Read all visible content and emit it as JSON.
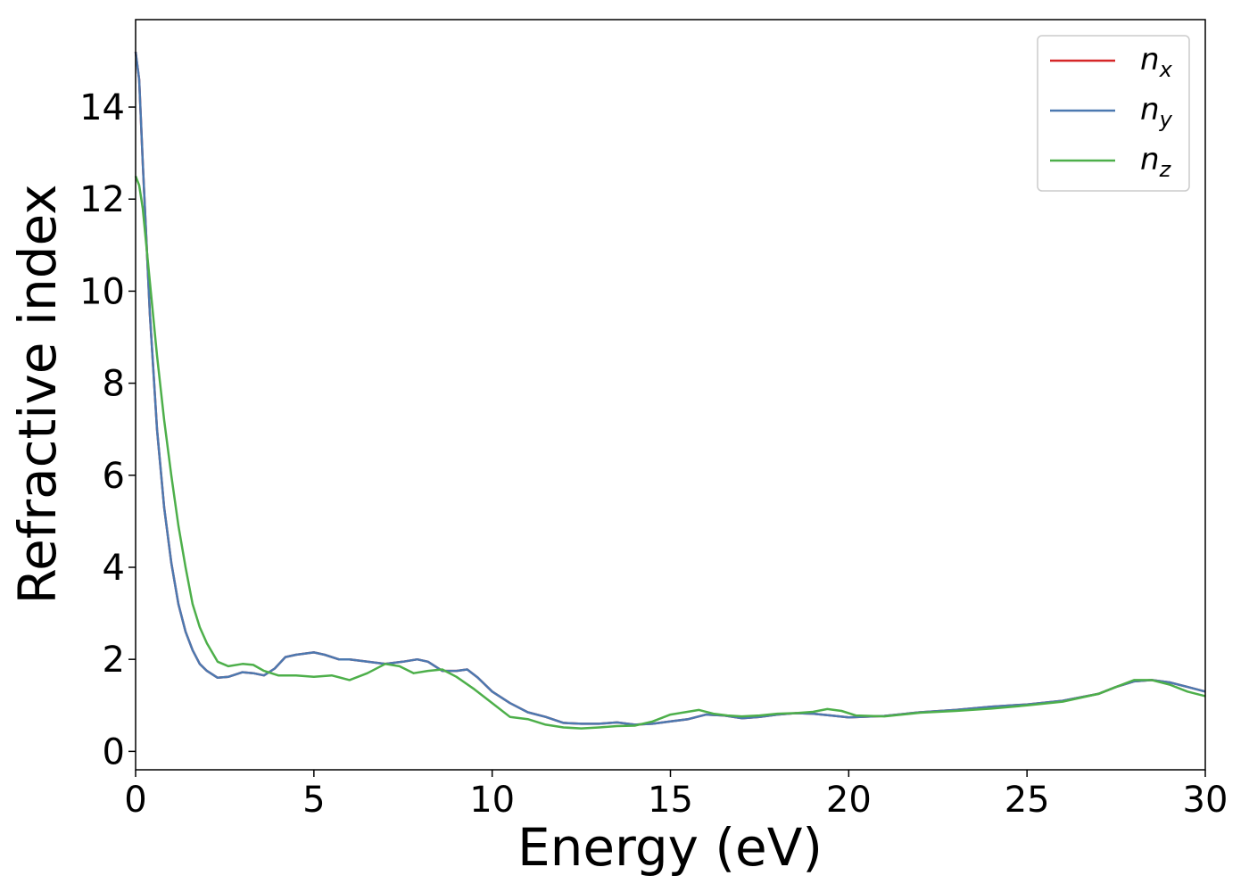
{
  "chart_data": {
    "type": "line",
    "xlabel": "Energy (eV)",
    "ylabel": "Refractive index",
    "xlim": [
      0,
      30
    ],
    "ylim": [
      -0.4,
      15.9
    ],
    "xticks": [
      "0",
      "5",
      "10",
      "15",
      "20",
      "25",
      "30"
    ],
    "yticks": [
      "0",
      "2",
      "4",
      "6",
      "8",
      "10",
      "12",
      "14"
    ],
    "grid": false,
    "legend_position": "top-right",
    "series": [
      {
        "name": "n",
        "subscript": "x",
        "color": "#d62728",
        "x": [
          0,
          0.1,
          0.2,
          0.4,
          0.6,
          0.8,
          1.0,
          1.2,
          1.4,
          1.6,
          1.8,
          2.0,
          2.3,
          2.6,
          3.0,
          3.3,
          3.6,
          3.9,
          4.2,
          4.5,
          5.0,
          5.3,
          5.7,
          6.0,
          6.5,
          7.0,
          7.5,
          7.9,
          8.2,
          8.6,
          9.0,
          9.3,
          9.6,
          10.0,
          10.5,
          11.0,
          11.5,
          12.0,
          12.5,
          13.0,
          13.5,
          14.0,
          14.5,
          15.0,
          15.5,
          16.0,
          16.5,
          17.0,
          17.5,
          18.0,
          18.5,
          19.0,
          19.5,
          20.0,
          21.0,
          22.0,
          23.0,
          24.0,
          25.0,
          26.0,
          27.0,
          27.5,
          28.0,
          28.5,
          29.0,
          29.5,
          30.0
        ],
        "values": [
          15.2,
          14.6,
          12.8,
          9.5,
          7.0,
          5.3,
          4.1,
          3.2,
          2.6,
          2.2,
          1.9,
          1.75,
          1.6,
          1.62,
          1.72,
          1.7,
          1.65,
          1.8,
          2.05,
          2.1,
          2.15,
          2.1,
          2.0,
          2.0,
          1.95,
          1.9,
          1.95,
          2.0,
          1.95,
          1.75,
          1.75,
          1.78,
          1.6,
          1.3,
          1.05,
          0.85,
          0.75,
          0.62,
          0.6,
          0.6,
          0.63,
          0.58,
          0.6,
          0.65,
          0.7,
          0.8,
          0.78,
          0.72,
          0.75,
          0.8,
          0.83,
          0.82,
          0.78,
          0.74,
          0.77,
          0.85,
          0.9,
          0.97,
          1.02,
          1.1,
          1.25,
          1.4,
          1.52,
          1.55,
          1.5,
          1.4,
          1.3
        ]
      },
      {
        "name": "n",
        "subscript": "y",
        "color": "#4c79b0",
        "x": [
          0,
          0.1,
          0.2,
          0.4,
          0.6,
          0.8,
          1.0,
          1.2,
          1.4,
          1.6,
          1.8,
          2.0,
          2.3,
          2.6,
          3.0,
          3.3,
          3.6,
          3.9,
          4.2,
          4.5,
          5.0,
          5.3,
          5.7,
          6.0,
          6.5,
          7.0,
          7.5,
          7.9,
          8.2,
          8.6,
          9.0,
          9.3,
          9.6,
          10.0,
          10.5,
          11.0,
          11.5,
          12.0,
          12.5,
          13.0,
          13.5,
          14.0,
          14.5,
          15.0,
          15.5,
          16.0,
          16.5,
          17.0,
          17.5,
          18.0,
          18.5,
          19.0,
          19.5,
          20.0,
          21.0,
          22.0,
          23.0,
          24.0,
          25.0,
          26.0,
          27.0,
          27.5,
          28.0,
          28.5,
          29.0,
          29.5,
          30.0
        ],
        "values": [
          15.2,
          14.6,
          12.8,
          9.5,
          7.0,
          5.3,
          4.1,
          3.2,
          2.6,
          2.2,
          1.9,
          1.75,
          1.6,
          1.62,
          1.72,
          1.7,
          1.65,
          1.8,
          2.05,
          2.1,
          2.15,
          2.1,
          2.0,
          2.0,
          1.95,
          1.9,
          1.95,
          2.0,
          1.95,
          1.75,
          1.75,
          1.78,
          1.6,
          1.3,
          1.05,
          0.85,
          0.75,
          0.62,
          0.6,
          0.6,
          0.63,
          0.58,
          0.6,
          0.65,
          0.7,
          0.8,
          0.78,
          0.72,
          0.75,
          0.8,
          0.83,
          0.82,
          0.78,
          0.74,
          0.77,
          0.85,
          0.9,
          0.97,
          1.02,
          1.1,
          1.25,
          1.4,
          1.52,
          1.55,
          1.5,
          1.4,
          1.3
        ]
      },
      {
        "name": "n",
        "subscript": "z",
        "color": "#4daf4a",
        "x": [
          0,
          0.1,
          0.2,
          0.4,
          0.6,
          0.8,
          1.0,
          1.2,
          1.4,
          1.6,
          1.8,
          2.0,
          2.3,
          2.6,
          3.0,
          3.3,
          3.6,
          4.0,
          4.5,
          5.0,
          5.5,
          6.0,
          6.5,
          7.0,
          7.4,
          7.8,
          8.2,
          8.6,
          9.0,
          9.5,
          10.0,
          10.5,
          11.0,
          11.5,
          12.0,
          12.5,
          13.0,
          13.5,
          14.0,
          14.5,
          15.0,
          15.4,
          15.8,
          16.2,
          16.6,
          17.0,
          17.5,
          18.0,
          18.5,
          19.0,
          19.4,
          19.8,
          20.2,
          21.0,
          22.0,
          23.0,
          24.0,
          25.0,
          26.0,
          27.0,
          27.5,
          28.0,
          28.5,
          29.0,
          29.5,
          30.0
        ],
        "values": [
          12.5,
          12.3,
          11.8,
          10.2,
          8.6,
          7.2,
          6.0,
          4.9,
          4.0,
          3.2,
          2.7,
          2.35,
          1.95,
          1.85,
          1.9,
          1.88,
          1.75,
          1.65,
          1.65,
          1.62,
          1.65,
          1.55,
          1.7,
          1.9,
          1.85,
          1.7,
          1.75,
          1.78,
          1.62,
          1.35,
          1.05,
          0.75,
          0.7,
          0.58,
          0.52,
          0.5,
          0.52,
          0.55,
          0.56,
          0.65,
          0.8,
          0.85,
          0.9,
          0.82,
          0.78,
          0.76,
          0.78,
          0.82,
          0.83,
          0.86,
          0.92,
          0.88,
          0.78,
          0.76,
          0.84,
          0.88,
          0.93,
          1.0,
          1.08,
          1.25,
          1.4,
          1.55,
          1.55,
          1.45,
          1.3,
          1.2
        ]
      }
    ]
  }
}
